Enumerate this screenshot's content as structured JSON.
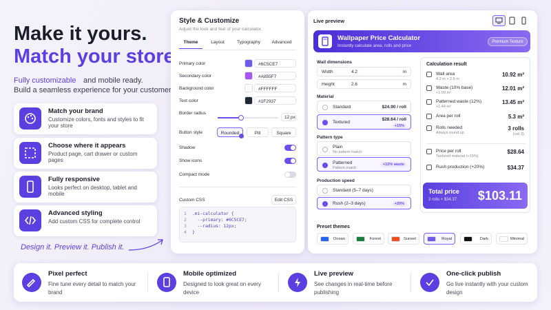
{
  "hero": {
    "title_line1": "Make it yours.",
    "title_line2": "Match your store.",
    "subtitle_highlight": "Fully customizable",
    "subtitle_rest": "and mobile ready.",
    "subtitle_line2": "Build a seamless experience for your customers."
  },
  "features": [
    {
      "title": "Match your brand",
      "text": "Customize colors, fonts and styles to fit your store"
    },
    {
      "title": "Choose where it appears",
      "text": "Product page, cart drawer or custom pages"
    },
    {
      "title": "Fully responsive",
      "text": "Looks perfect on desktop, tablet and mobile"
    },
    {
      "title": "Advanced styling",
      "text": "Add custom CSS for complete control"
    }
  ],
  "tagline": "Design it. Preview it. Publish it.",
  "customize": {
    "title": "Style & Customize",
    "subtitle": "Adjust the look and feel of your calculator.",
    "tabs": [
      {
        "label": "Theme",
        "active": true
      },
      {
        "label": "Layout",
        "active": false
      },
      {
        "label": "Typography",
        "active": false
      },
      {
        "label": "Advanced",
        "active": false
      }
    ],
    "colors": [
      {
        "label": "Primary color",
        "value": "#6C5CE7"
      },
      {
        "label": "Secondary color",
        "value": "#A855F7"
      },
      {
        "label": "Background color",
        "value": "#FFFFFF"
      },
      {
        "label": "Text color",
        "value": "#1F2937"
      }
    ],
    "border_radius": {
      "label": "Border radius",
      "value": "12 px"
    },
    "button_style": {
      "label": "Button style",
      "options": [
        {
          "label": "Rounded",
          "selected": true
        },
        {
          "label": "Pill",
          "selected": false
        },
        {
          "label": "Square",
          "selected": false
        }
      ]
    },
    "toggles": [
      {
        "label": "Shadow",
        "on": true
      },
      {
        "label": "Show icons",
        "on": true
      },
      {
        "label": "Compact mode",
        "on": false
      }
    ],
    "custom_css": {
      "label": "Custom CSS",
      "button": "Edit CSS",
      "lines": [
        {
          "n": "1",
          "code": ".mi-calculator {"
        },
        {
          "n": "2",
          "code": "  --primary: #6C5CE7;"
        },
        {
          "n": "3",
          "code": "  --radius: 12px;"
        },
        {
          "n": "4",
          "code": "}"
        }
      ]
    }
  },
  "preview": {
    "title": "Live preview",
    "calculator": {
      "title": "Wallpaper Price Calculator",
      "subtitle": "Instantly calculate area, rolls and price",
      "badge": "Premium Texture",
      "dimensions": {
        "label": "Wall dimensions",
        "fields": [
          {
            "label": "Width",
            "value": "4.2",
            "unit": "m"
          },
          {
            "label": "Height",
            "value": "2.6",
            "unit": "m"
          }
        ]
      },
      "sections": [
        {
          "label": "Material",
          "options": [
            {
              "label": "Standard",
              "price": "$24.90 / roll",
              "selected": false
            },
            {
              "label": "Textured",
              "price": "$28.64 / roll",
              "badge": "+15%",
              "selected": true
            }
          ]
        },
        {
          "label": "Pattern type",
          "options": [
            {
              "label": "Plain",
              "sublabel": "No pattern match",
              "selected": false
            },
            {
              "label": "Patterned",
              "sublabel": "Pattern match",
              "badge": "+12% waste",
              "selected": true
            }
          ]
        },
        {
          "label": "Production speed",
          "options": [
            {
              "label": "Standard (5–7 days)",
              "selected": false
            },
            {
              "label": "Rush (2–3 days)",
              "badge": "+20%",
              "selected": true
            }
          ]
        }
      ],
      "result": {
        "title": "Calculation result",
        "rows": [
          {
            "label": "Wall area",
            "sublabel": "4.2 m × 2.6 m",
            "value": "10.92 m²"
          },
          {
            "label": "Waste (10% base)",
            "sublabel": "+1.09 m²",
            "value": "12.01 m²"
          },
          {
            "label": "Patterned waste (12%)",
            "sublabel": "+1.44 m²",
            "value": "13.45 m²"
          },
          {
            "label": "Area per roll",
            "value": "5.3 m²"
          },
          {
            "label": "Rolls needed",
            "sublabel": "Always round up",
            "value": "3 rolls",
            "note": "(ceil 3)"
          },
          {
            "label": "Price per roll",
            "sublabel": "Textured material (+15%)",
            "value": "$28.64"
          },
          {
            "label": "Rush production (+20%)",
            "value": "$34.37"
          }
        ],
        "total": {
          "label": "Total price",
          "sublabel": "3 rolls × $34.37",
          "value": "$103.11"
        }
      }
    },
    "presets": {
      "label": "Preset themes",
      "items": [
        {
          "name": "Ocean",
          "color": "#2563eb",
          "selected": false
        },
        {
          "name": "Forest",
          "color": "#15803d",
          "selected": false
        },
        {
          "name": "Sunset",
          "color": "#f04e23",
          "selected": false
        },
        {
          "name": "Royal",
          "color": "#6c5ce7",
          "selected": true
        },
        {
          "name": "Dark",
          "color": "#111111",
          "selected": false
        },
        {
          "name": "Minimal",
          "color": "#ffffff",
          "selected": false
        }
      ]
    }
  },
  "benefits": [
    {
      "title": "Pixel perfect",
      "text": "Fine tune every detail to match your brand"
    },
    {
      "title": "Mobile optimized",
      "text": "Designed to look great on every device"
    },
    {
      "title": "Live preview",
      "text": "See changes in real-time before publishing"
    },
    {
      "title": "One-click publish",
      "text": "Go live instantly with your custom design"
    }
  ]
}
